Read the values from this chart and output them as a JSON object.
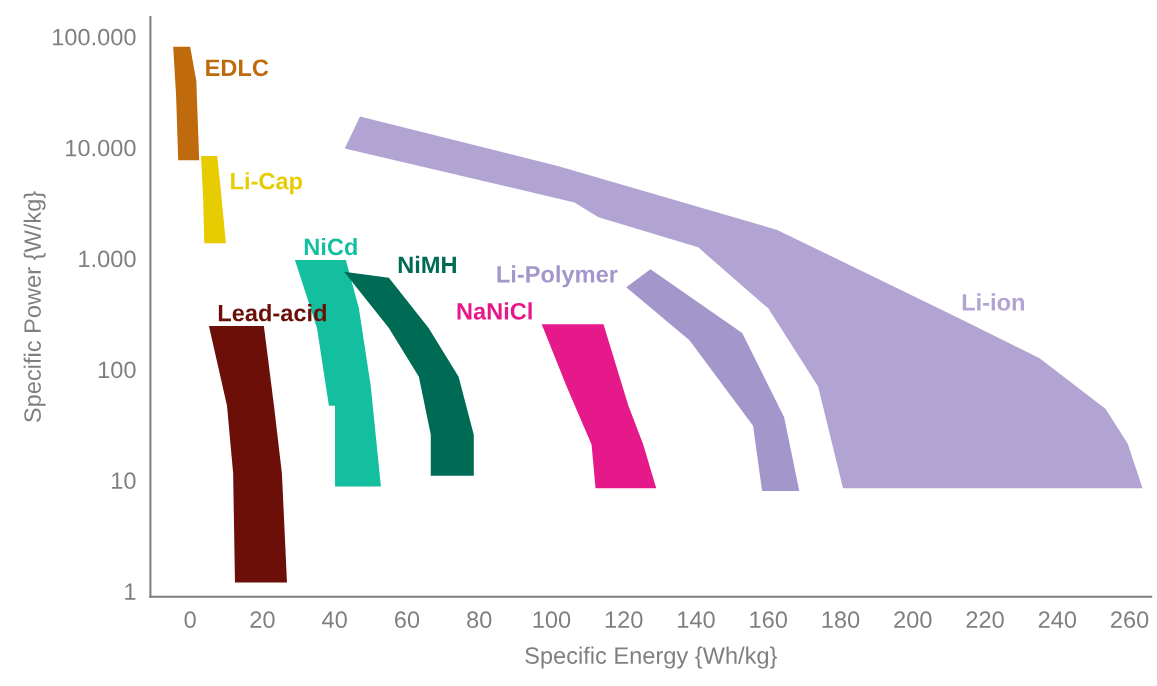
{
  "chart_data": {
    "type": "area",
    "xlabel": "Specific Energy {Wh/kg}",
    "ylabel": "Specific Power {W/kg}",
    "log": "y",
    "grid": false,
    "xlim": [
      -11,
      266
    ],
    "ylim": [
      0.89,
      150000
    ],
    "xticks": [
      0,
      20,
      40,
      60,
      80,
      100,
      120,
      140,
      160,
      180,
      200,
      220,
      240,
      260
    ],
    "yticks": [
      1,
      10,
      100,
      {
        "value": 1000,
        "label": "1.000"
      },
      {
        "value": 10000,
        "label": "10.000"
      },
      {
        "value": 100000,
        "label": "100.000"
      }
    ],
    "series": [
      {
        "color": "#bf6a0c",
        "x": [
          -4.7,
          0,
          1.7,
          2.5,
          -3.3,
          -3.9
        ],
        "values": [
          81000,
          81000,
          40000,
          7700,
          7700,
          30000
        ]
      },
      {
        "color": "#e6cc00",
        "x": [
          3.0,
          7.5,
          8.6,
          9.9,
          3.9,
          3.6
        ],
        "values": [
          8400,
          8400,
          3800,
          1370,
          1370,
          3500
        ]
      },
      {
        "color": "#6b0f08",
        "x": [
          5.2,
          20.4,
          23.2,
          25.4,
          26.8,
          12.4,
          11.9,
          10.2
        ],
        "values": [
          246,
          246,
          47,
          11.5,
          1.2,
          1.2,
          11.5,
          47
        ]
      },
      {
        "color": "#14bfa0",
        "x": [
          29.0,
          43.1,
          46.7,
          50.0,
          52.8,
          40.1,
          40.1,
          38.4,
          35.1
        ],
        "values": [
          970,
          970,
          355,
          70,
          8.8,
          8.8,
          47,
          47,
          236
        ]
      },
      {
        "color": "#006b55",
        "x": [
          42.6,
          55.0,
          66.0,
          74.3,
          78.5,
          78.5,
          66.6,
          66.6,
          63.3,
          55.0
        ],
        "values": [
          760,
          670,
          236,
          86,
          25.7,
          11,
          11,
          25.7,
          86,
          236
        ]
      },
      {
        "color": "#e6198a",
        "x": [
          97.3,
          114.4,
          121.3,
          125.4,
          129.0,
          112.2,
          111.1,
          104.2
        ],
        "values": [
          255,
          255,
          47,
          21,
          8.5,
          8.5,
          21,
          70
        ]
      },
      {
        "color": "#a396cb",
        "x": [
          120.7,
          127.4,
          152.8,
          164.4,
          168.6,
          158.3,
          155.8,
          138.2
        ],
        "values": [
          550,
          800,
          213,
          37,
          8,
          8,
          31,
          183
        ]
      },
      {
        "color": "#b1a3d2",
        "x": [
          42.8,
          47.0,
          102.0,
          162.5,
          211.1,
          235.1,
          253.4,
          259.5,
          263.6,
          180.7,
          173.8,
          160.0,
          140.6,
          113.0,
          106.4
        ],
        "values": [
          9800,
          19100,
          6800,
          1810,
          307,
          126,
          44,
          21.4,
          8.5,
          8.5,
          70,
          355,
          1260,
          2350,
          3200
        ]
      }
    ],
    "annotations": [
      {
        "text": "EDLC",
        "x": 1.7,
        "y": 40000
      },
      {
        "text": "Li-Cap",
        "x": 8.6,
        "y": 3800
      },
      {
        "text": "Lead-acid",
        "x": 5.2,
        "y": 246
      },
      {
        "text": "NiCd",
        "x": 29.0,
        "y": 970
      },
      {
        "text": "NiMH",
        "x": 55.0,
        "y": 670
      },
      {
        "text": "NaNiCl",
        "x": 97.3,
        "y": 255
      },
      {
        "text": "Li-Polymer",
        "x": 120.7,
        "y": 550
      },
      {
        "text": "Li-ion",
        "x": 211.1,
        "y": 307
      }
    ]
  }
}
